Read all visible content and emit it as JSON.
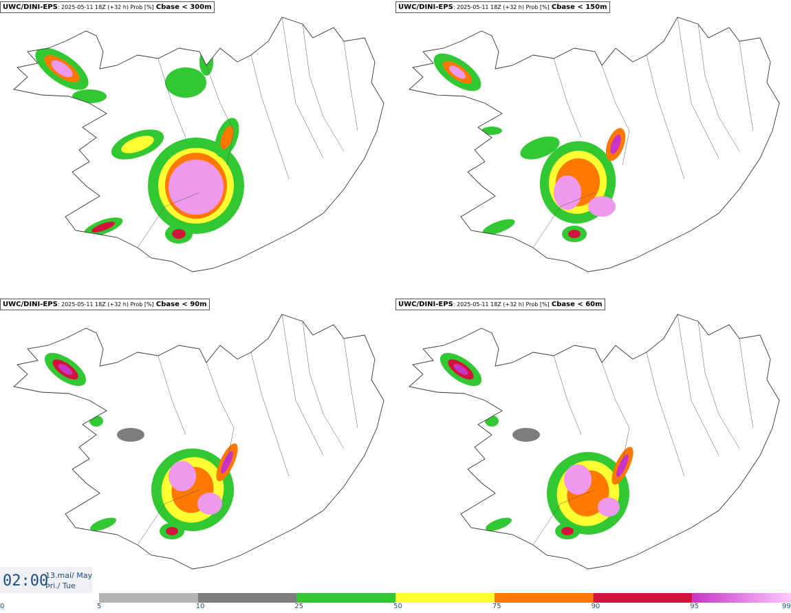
{
  "panels": [
    {
      "model": "UWC/DINI-EPS",
      "meta": ": 2025-05-11 18Z (+32 h) Prob [%]",
      "threshold": "Cbase < 300m"
    },
    {
      "model": "UWC/DINI-EPS",
      "meta": ": 2025-05-11 18Z (+32 h) Prob [%]",
      "threshold": "Cbase < 150m"
    },
    {
      "model": "UWC/DINI-EPS",
      "meta": ": 2025-05-11 18Z (+32 h) Prob [%]",
      "threshold": "Cbase < 90m"
    },
    {
      "model": "UWC/DINI-EPS",
      "meta": ": 2025-05-11 18Z (+32 h) Prob [%]",
      "threshold": "Cbase < 60m"
    }
  ],
  "valid_time": {
    "time": "02:00",
    "date": "13.maí/ May",
    "weekday": "Þri./ Tue"
  },
  "colorbar": {
    "ticks": [
      "0",
      "5",
      "10",
      "25",
      "50",
      "75",
      "90",
      "95",
      "99"
    ],
    "colors": [
      "#ffffff",
      "#b4b4b4",
      "#7d7d7d",
      "#32c832",
      "#ffff32",
      "#ff7800",
      "#d2143c",
      "#c834c8"
    ],
    "last_gradient_to": "#ffc8ff"
  }
}
